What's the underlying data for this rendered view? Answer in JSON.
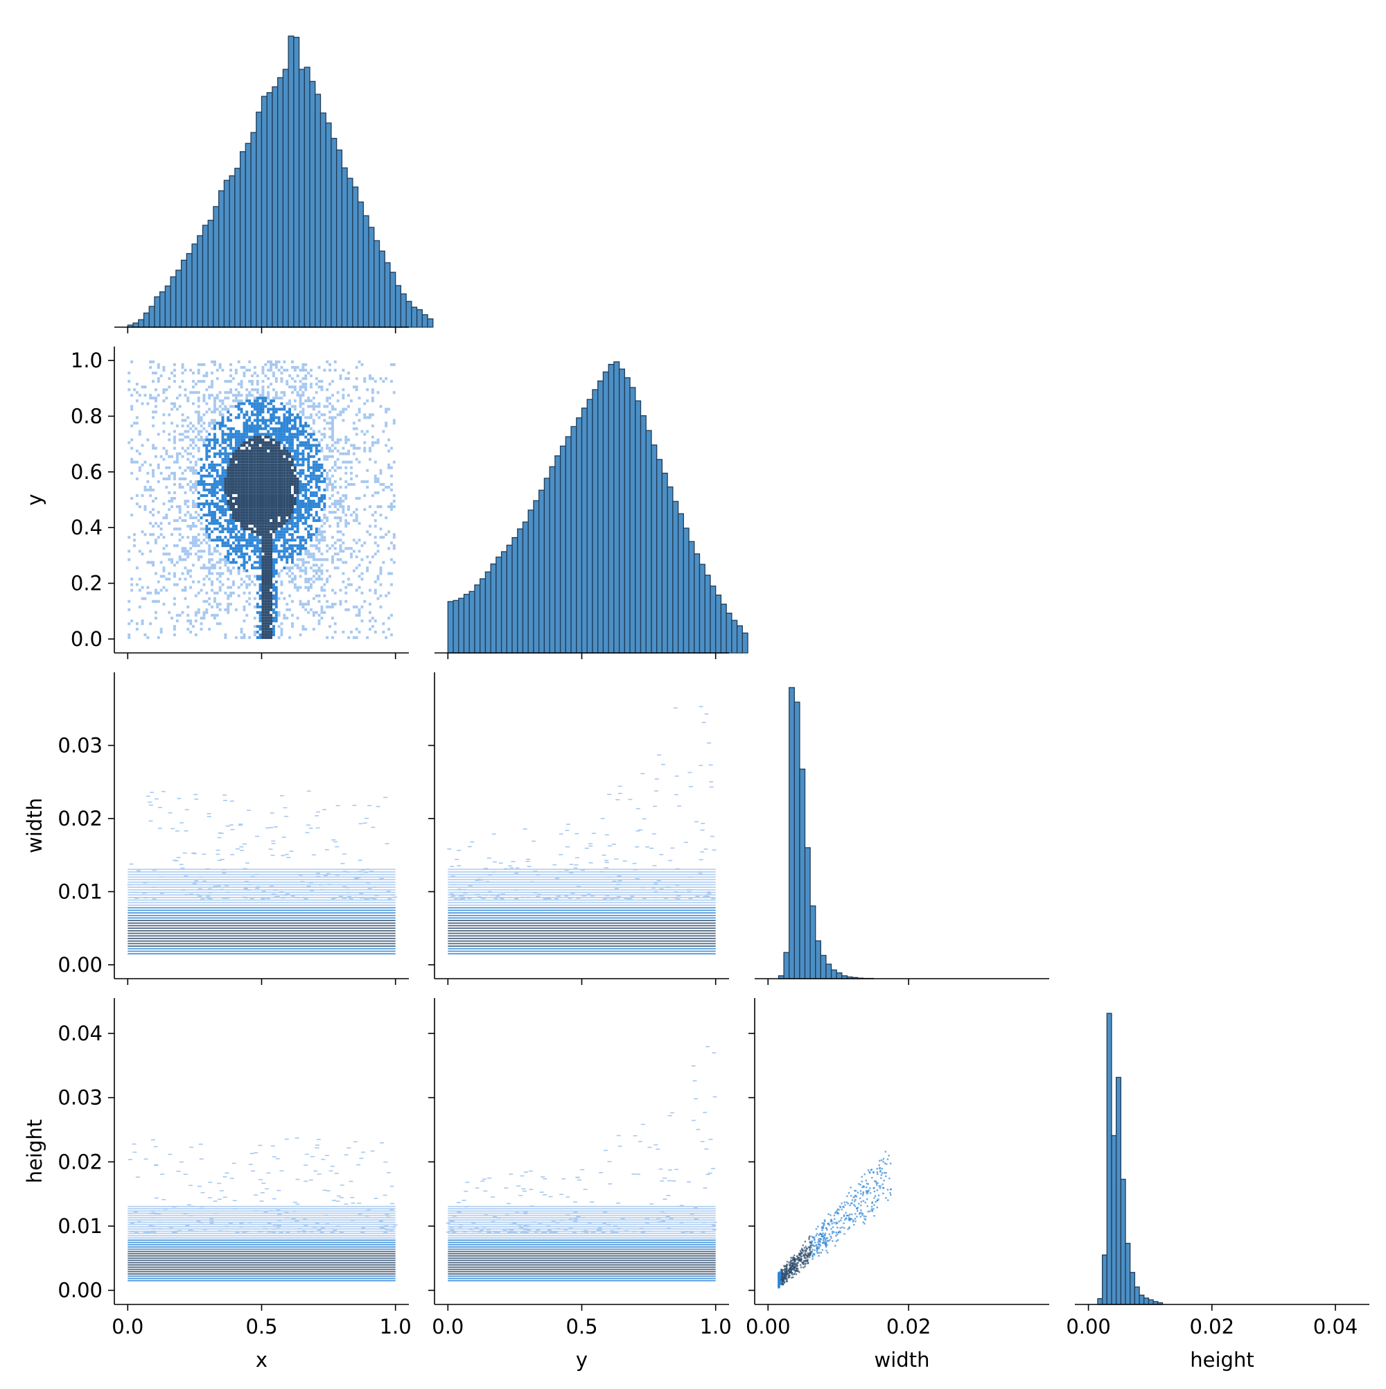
{
  "chart_data": {
    "type": "pairplot",
    "layout": "corner",
    "variables": [
      "x",
      "y",
      "width",
      "height"
    ],
    "colors": {
      "bar_fill": "#4c8fc5",
      "bar_edge": "#1f3b57",
      "hist2d_light": "#a6c8f0",
      "hist2d_mid": "#2f86d6",
      "hist2d_dark": "#2f4d6e"
    },
    "axes": {
      "x": {
        "label": "x",
        "range": [
          -0.05,
          1.05
        ],
        "ticks": [
          0.0,
          0.5,
          1.0
        ],
        "tick_labels": [
          "0.0",
          "0.5",
          "1.0"
        ]
      },
      "y": {
        "label": "y",
        "range": [
          -0.05,
          1.05
        ],
        "ticks": [
          0.0,
          0.2,
          0.4,
          0.6,
          0.8,
          1.0
        ],
        "tick_labels": [
          "0.0",
          "0.2",
          "0.4",
          "0.6",
          "0.8",
          "1.0"
        ],
        "col_ticks": [
          0.0,
          0.5,
          1.0
        ],
        "col_tick_labels": [
          "0.0",
          "0.5",
          "1.0"
        ]
      },
      "width": {
        "label": "width",
        "range": [
          -0.0019,
          0.04
        ],
        "ticks": [
          0.0,
          0.01,
          0.02,
          0.03
        ],
        "tick_labels": [
          "0.00",
          "0.01",
          "0.02",
          "0.03"
        ],
        "col_ticks": [
          0.0,
          0.02
        ],
        "col_tick_labels": [
          "0.00",
          "0.02"
        ]
      },
      "height": {
        "label": "height",
        "range": [
          -0.0022,
          0.0455
        ],
        "ticks": [
          0.0,
          0.01,
          0.02,
          0.03,
          0.04
        ],
        "tick_labels": [
          "0.00",
          "0.01",
          "0.02",
          "0.03",
          "0.04"
        ],
        "col_ticks": [
          0.0,
          0.02,
          0.04
        ],
        "col_tick_labels": [
          "0.00",
          "0.02",
          "0.04"
        ]
      }
    },
    "histograms": {
      "x": {
        "bin_start": 0.0,
        "bin_width": 0.02,
        "counts": [
          0.5,
          1,
          1.8,
          3.4,
          5,
          7.3,
          8.5,
          9.9,
          12.1,
          13.7,
          16.1,
          17.7,
          20,
          22,
          24.5,
          25.7,
          29,
          32.8,
          35.3,
          36.4,
          38.2,
          42.2,
          44.2,
          46.8,
          51.7,
          55.5,
          56.4,
          57.8,
          60,
          62,
          70,
          69.7,
          62,
          62.5,
          59.1,
          56,
          51.5,
          49.1,
          45.4,
          42.6,
          38.3,
          35.8,
          33.7,
          30.1,
          26.8,
          24,
          20.8,
          18.3,
          15.5,
          13.2,
          10,
          8,
          6.2,
          4.8,
          4.2,
          3,
          2
        ]
      },
      "y": {
        "bin_start": 0.0,
        "bin_width": 0.02,
        "counts": [
          14.2,
          14.5,
          15.1,
          16.2,
          17,
          18.8,
          20.5,
          22.4,
          24.6,
          26.5,
          28,
          29.8,
          31.9,
          34.3,
          36.2,
          39.5,
          42.1,
          45,
          48.3,
          51.5,
          54.5,
          57.2,
          59.8,
          62.6,
          65,
          67.7,
          70.1,
          72.8,
          75.2,
          77.7,
          79.8,
          80.5,
          78.5,
          76.1,
          73.4,
          69.7,
          65.6,
          61.5,
          57.5,
          53.5,
          49.7,
          45.9,
          41.9,
          38.5,
          34.5,
          30.8,
          27.4,
          24.5,
          21.5,
          18.5,
          16,
          13.5,
          11,
          9,
          7.5,
          5.5
        ]
      },
      "width": {
        "bin_start": 0.0015,
        "bin_width": 0.00075,
        "counts": [
          1,
          9,
          100,
          95,
          72,
          45,
          25,
          13,
          8,
          5,
          3,
          2,
          1,
          0.6,
          0.4,
          0.2,
          0.1,
          0.1
        ]
      },
      "height": {
        "bin_start": 0.0015,
        "bin_width": 0.00075,
        "counts": [
          2,
          17,
          100,
          58,
          78,
          43,
          21,
          11,
          6,
          3.2,
          2.2,
          1.6,
          1,
          0.6
        ]
      }
    }
  }
}
